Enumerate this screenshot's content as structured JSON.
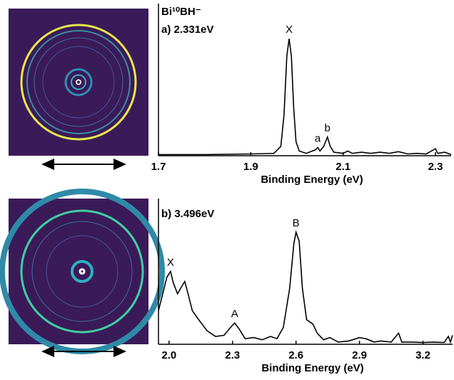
{
  "chart_data": [
    {
      "type": "line",
      "title": "Bi¹⁰BH⁻",
      "subtitle": "a) 2.331eV",
      "x_label": "Binding Energy (eV)",
      "color": "#000000",
      "x": [
        1.7,
        1.8,
        1.9,
        1.95,
        1.965,
        1.972,
        1.978,
        1.983,
        1.988,
        1.993,
        1.998,
        2.005,
        2.02,
        2.04,
        2.045,
        2.05,
        2.058,
        2.066,
        2.072,
        2.08,
        2.1,
        2.11,
        2.12,
        2.14,
        2.16,
        2.18,
        2.2,
        2.22,
        2.24,
        2.26,
        2.28,
        2.3,
        2.305,
        2.32,
        2.334
      ],
      "values": [
        0.01,
        0.01,
        0.015,
        0.02,
        0.08,
        0.35,
        0.85,
        1.0,
        0.85,
        0.4,
        0.12,
        0.04,
        0.02,
        0.05,
        0.07,
        0.04,
        0.08,
        0.16,
        0.08,
        0.03,
        0.02,
        0.04,
        0.02,
        0.03,
        0.02,
        0.03,
        0.02,
        0.035,
        0.015,
        0.02,
        0.015,
        0.06,
        0.02,
        0.03,
        0.01
      ],
      "xlim": [
        1.7,
        2.334
      ],
      "xticks": [
        1.7,
        1.9,
        2.1,
        2.3
      ],
      "ylim": [
        0,
        1.3
      ],
      "annotations": [
        {
          "text": "X",
          "x": 1.983
        },
        {
          "text": "a",
          "x": 2.045
        },
        {
          "text": "b",
          "x": 2.066
        }
      ]
    },
    {
      "type": "line",
      "subtitle": "b) 3.496eV",
      "x_label": "Binding Energy (eV)",
      "color": "#000000",
      "x": [
        1.95,
        1.97,
        1.99,
        2.007,
        2.02,
        2.04,
        2.055,
        2.074,
        2.09,
        2.11,
        2.14,
        2.18,
        2.22,
        2.26,
        2.29,
        2.31,
        2.33,
        2.36,
        2.4,
        2.44,
        2.48,
        2.51,
        2.54,
        2.57,
        2.59,
        2.6,
        2.615,
        2.63,
        2.65,
        2.68,
        2.7,
        2.73,
        2.76,
        2.8,
        2.85,
        2.9,
        2.93,
        2.97,
        3.0,
        3.05,
        3.085,
        3.1,
        3.15,
        3.2,
        3.25,
        3.3,
        3.32,
        3.33,
        3.34
      ],
      "values": [
        0.3,
        0.45,
        0.6,
        0.65,
        0.55,
        0.45,
        0.5,
        0.56,
        0.45,
        0.3,
        0.22,
        0.12,
        0.07,
        0.08,
        0.15,
        0.19,
        0.14,
        0.05,
        0.06,
        0.04,
        0.07,
        0.05,
        0.15,
        0.5,
        0.9,
        1.0,
        0.92,
        0.5,
        0.22,
        0.18,
        0.1,
        0.04,
        0.06,
        0.02,
        0.03,
        0.06,
        0.05,
        0.02,
        0.03,
        0.02,
        0.1,
        0.02,
        0.02,
        0.015,
        0.02,
        0.015,
        0.07,
        0.02,
        0.08
      ],
      "xlim": [
        1.95,
        3.34
      ],
      "xticks": [
        {
          "value": 2,
          "label": "2.0"
        },
        2.3,
        2.6,
        2.9,
        3.2
      ],
      "ylim": [
        0,
        1.3
      ],
      "annotations": [
        {
          "text": "X",
          "x": 2.007
        },
        {
          "text": "A",
          "x": 2.31
        },
        {
          "text": "B",
          "x": 2.6
        }
      ]
    }
  ]
}
